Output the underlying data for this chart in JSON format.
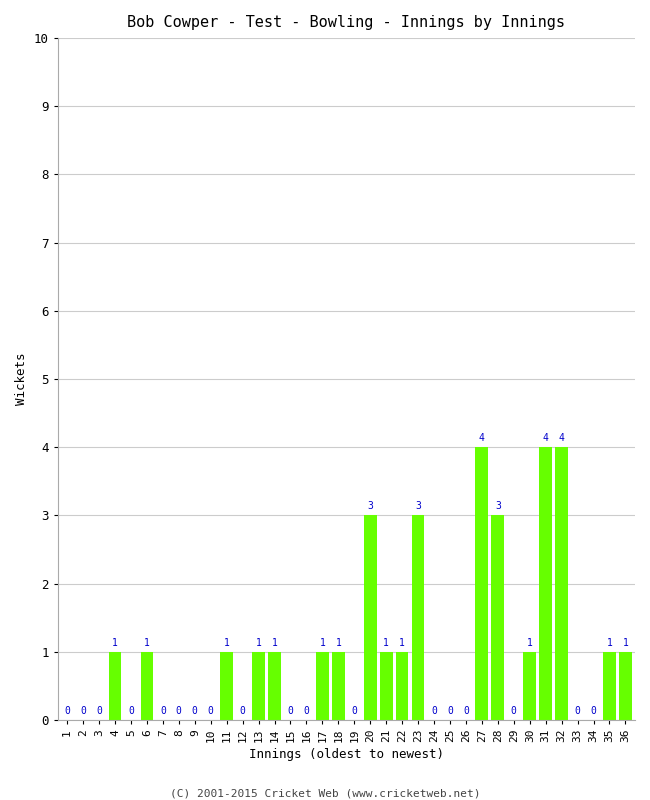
{
  "title": "Bob Cowper - Test - Bowling - Innings by Innings",
  "xlabel": "Innings (oldest to newest)",
  "ylabel": "Wickets",
  "footer": "(C) 2001-2015 Cricket Web (www.cricketweb.net)",
  "bar_color": "#66ff00",
  "label_color": "#0000cc",
  "background_color": "#ffffff",
  "grid_color": "#cccccc",
  "ylim": [
    0,
    10
  ],
  "yticks": [
    0,
    1,
    2,
    3,
    4,
    5,
    6,
    7,
    8,
    9,
    10
  ],
  "innings": [
    1,
    2,
    3,
    4,
    5,
    6,
    7,
    8,
    9,
    10,
    11,
    12,
    13,
    14,
    15,
    16,
    17,
    18,
    19,
    20,
    21,
    22,
    23,
    24,
    25,
    26,
    27,
    28,
    29,
    30,
    31,
    32,
    33,
    34,
    35,
    36
  ],
  "wickets": [
    0,
    0,
    0,
    1,
    0,
    1,
    0,
    0,
    0,
    0,
    1,
    0,
    1,
    1,
    0,
    0,
    1,
    1,
    0,
    3,
    1,
    1,
    3,
    0,
    0,
    0,
    4,
    3,
    0,
    1,
    4,
    4,
    0,
    0,
    1,
    1
  ]
}
